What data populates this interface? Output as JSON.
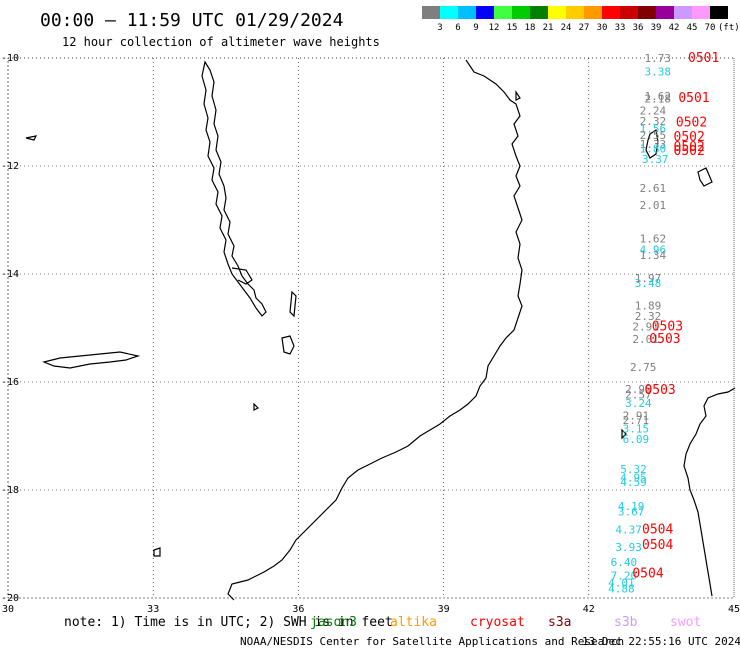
{
  "title": "00:00 – 11:59 UTC 01/29/2024",
  "subtitle": "12 hour collection of altimeter wave heights",
  "legend": {
    "unit": "(ft)",
    "bins": [
      {
        "label": "3",
        "color": "#7f7f7f"
      },
      {
        "label": "6",
        "color": "#00ffff"
      },
      {
        "label": "9",
        "color": "#00bfff"
      },
      {
        "label": "12",
        "color": "#0000ff"
      },
      {
        "label": "15",
        "color": "#40ff40"
      },
      {
        "label": "18",
        "color": "#00cc00"
      },
      {
        "label": "21",
        "color": "#008000"
      },
      {
        "label": "24",
        "color": "#ffff00"
      },
      {
        "label": "27",
        "color": "#ffcc00"
      },
      {
        "label": "30",
        "color": "#ff9900"
      },
      {
        "label": "33",
        "color": "#ff0000"
      },
      {
        "label": "36",
        "color": "#cc0000"
      },
      {
        "label": "39",
        "color": "#800000"
      },
      {
        "label": "42",
        "color": "#990099"
      },
      {
        "label": "45",
        "color": "#cc99ff"
      },
      {
        "label": "70",
        "color": "#ff99ff"
      },
      {
        "label": "",
        "color": "#000000"
      }
    ]
  },
  "axes": {
    "lon_labels": [
      "30",
      "33",
      "36",
      "39",
      "42",
      "45"
    ],
    "lat_labels": [
      "-10",
      "-12",
      "-14",
      "-16",
      "-18",
      "-20"
    ],
    "lon_range": [
      30,
      45
    ],
    "lat_range": [
      -20,
      -10
    ]
  },
  "wave_labels": [
    {
      "text": "1.73",
      "lon": 43.15,
      "lat": -10.0,
      "color": "#7f7f7f"
    },
    {
      "text": "3.38",
      "lon": 43.15,
      "lat": -10.25,
      "color": "#22ccdd"
    },
    {
      "text": "1.62",
      "lon": 43.15,
      "lat": -10.7,
      "color": "#7f7f7f"
    },
    {
      "text": "2.18",
      "lon": 43.15,
      "lat": -10.75,
      "color": "#7f7f7f"
    },
    {
      "text": "2.24",
      "lon": 43.05,
      "lat": -10.97,
      "color": "#7f7f7f"
    },
    {
      "text": "2.32",
      "lon": 43.05,
      "lat": -11.17,
      "color": "#7f7f7f"
    },
    {
      "text": "1.56",
      "lon": 43.05,
      "lat": -11.31,
      "color": "#22ccdd"
    },
    {
      "text": "2.55",
      "lon": 43.05,
      "lat": -11.43,
      "color": "#7f7f7f"
    },
    {
      "text": "1.33",
      "lon": 43.05,
      "lat": -11.59,
      "color": "#7f7f7f"
    },
    {
      "text": "1.80",
      "lon": 43.05,
      "lat": -11.68,
      "color": "#22ccdd"
    },
    {
      "text": "3.37",
      "lon": 43.1,
      "lat": -11.87,
      "color": "#22ccdd"
    },
    {
      "text": "2.61",
      "lon": 43.05,
      "lat": -12.41,
      "color": "#7f7f7f"
    },
    {
      "text": "2.01",
      "lon": 43.05,
      "lat": -12.72,
      "color": "#7f7f7f"
    },
    {
      "text": "1.62",
      "lon": 43.05,
      "lat": -13.34,
      "color": "#7f7f7f"
    },
    {
      "text": "4.96",
      "lon": 43.05,
      "lat": -13.55,
      "color": "#22ccdd"
    },
    {
      "text": "1.34",
      "lon": 43.05,
      "lat": -13.65,
      "color": "#7f7f7f"
    },
    {
      "text": "1.97",
      "lon": 42.95,
      "lat": -14.07,
      "color": "#7f7f7f"
    },
    {
      "text": "3.48",
      "lon": 42.95,
      "lat": -14.17,
      "color": "#22ccdd"
    },
    {
      "text": "1.89",
      "lon": 42.95,
      "lat": -14.58,
      "color": "#7f7f7f"
    },
    {
      "text": "2.32",
      "lon": 42.95,
      "lat": -14.78,
      "color": "#7f7f7f"
    },
    {
      "text": "2.91",
      "lon": 42.9,
      "lat": -14.97,
      "color": "#7f7f7f"
    },
    {
      "text": "2.01",
      "lon": 42.9,
      "lat": -15.2,
      "color": "#7f7f7f"
    },
    {
      "text": "2.75",
      "lon": 42.85,
      "lat": -15.72,
      "color": "#7f7f7f"
    },
    {
      "text": "2.95",
      "lon": 42.75,
      "lat": -16.13,
      "color": "#7f7f7f"
    },
    {
      "text": "2.57",
      "lon": 42.75,
      "lat": -16.23,
      "color": "#7f7f7f"
    },
    {
      "text": "3.24",
      "lon": 42.75,
      "lat": -16.39,
      "color": "#22ccdd"
    },
    {
      "text": "2.91",
      "lon": 42.7,
      "lat": -16.62,
      "color": "#7f7f7f"
    },
    {
      "text": "2.71",
      "lon": 42.7,
      "lat": -16.7,
      "color": "#7f7f7f"
    },
    {
      "text": "3.15",
      "lon": 42.7,
      "lat": -16.86,
      "color": "#22ccdd"
    },
    {
      "text": "6.09",
      "lon": 42.7,
      "lat": -17.06,
      "color": "#22ccdd"
    },
    {
      "text": "5.32",
      "lon": 42.65,
      "lat": -17.61,
      "color": "#22ccdd"
    },
    {
      "text": "4.95",
      "lon": 42.65,
      "lat": -17.77,
      "color": "#22ccdd"
    },
    {
      "text": "4.59",
      "lon": 42.65,
      "lat": -17.85,
      "color": "#22ccdd"
    },
    {
      "text": "4.19",
      "lon": 42.6,
      "lat": -18.3,
      "color": "#22ccdd"
    },
    {
      "text": "3.67",
      "lon": 42.6,
      "lat": -18.4,
      "color": "#22ccdd"
    },
    {
      "text": "4.37",
      "lon": 42.55,
      "lat": -18.73,
      "color": "#22ccdd"
    },
    {
      "text": "3.93",
      "lon": 42.55,
      "lat": -19.06,
      "color": "#22ccdd"
    },
    {
      "text": "6.40",
      "lon": 42.45,
      "lat": -19.33,
      "color": "#22ccdd"
    },
    {
      "text": "7.20",
      "lon": 42.45,
      "lat": -19.58,
      "color": "#22ccdd"
    },
    {
      "text": "4.01",
      "lon": 42.4,
      "lat": -19.71,
      "color": "#22ccdd"
    },
    {
      "text": "4.88",
      "lon": 42.4,
      "lat": -19.82,
      "color": "#22ccdd"
    }
  ],
  "time_labels": [
    {
      "text": "0501",
      "lon": 44.05,
      "lat": -10.0
    },
    {
      "text": "0501",
      "lon": 43.85,
      "lat": -10.74
    },
    {
      "text": "0502",
      "lon": 43.8,
      "lat": -11.19
    },
    {
      "text": "0502",
      "lon": 43.75,
      "lat": -11.46
    },
    {
      "text": "0502",
      "lon": 43.75,
      "lat": -11.65
    },
    {
      "text": "0502",
      "lon": 43.75,
      "lat": -11.72
    },
    {
      "text": "0503",
      "lon": 43.3,
      "lat": -14.97
    },
    {
      "text": "0503",
      "lon": 43.25,
      "lat": -15.2
    },
    {
      "text": "0503",
      "lon": 43.15,
      "lat": -16.15
    },
    {
      "text": "0504",
      "lon": 43.1,
      "lat": -18.73
    },
    {
      "text": "0504",
      "lon": 43.1,
      "lat": -19.02
    },
    {
      "text": "0504",
      "lon": 42.9,
      "lat": -19.55
    }
  ],
  "note": {
    "prefix": "note: 1) Time is in UTC; 2) SWH is in feet",
    "satellites": [
      {
        "name": "jason3",
        "color": "#008000"
      },
      {
        "name": "altika",
        "color": "#ff9900"
      },
      {
        "name": "cryosat",
        "color": "#ff0000"
      },
      {
        "name": "s3a",
        "color": "#800000"
      },
      {
        "name": "s3b",
        "color": "#cc99ff"
      },
      {
        "name": "swot",
        "color": "#ff99ff"
      }
    ]
  },
  "footer": {
    "credit": "NOAA/NESDIS Center for Satellite Applications and Research",
    "timestamp": "13 Dec 22:55:16 UTC 2024"
  },
  "colors": {
    "wave_gray": "#7f7f7f",
    "wave_cyan": "#22ccdd",
    "time_red": "#ff0000"
  }
}
